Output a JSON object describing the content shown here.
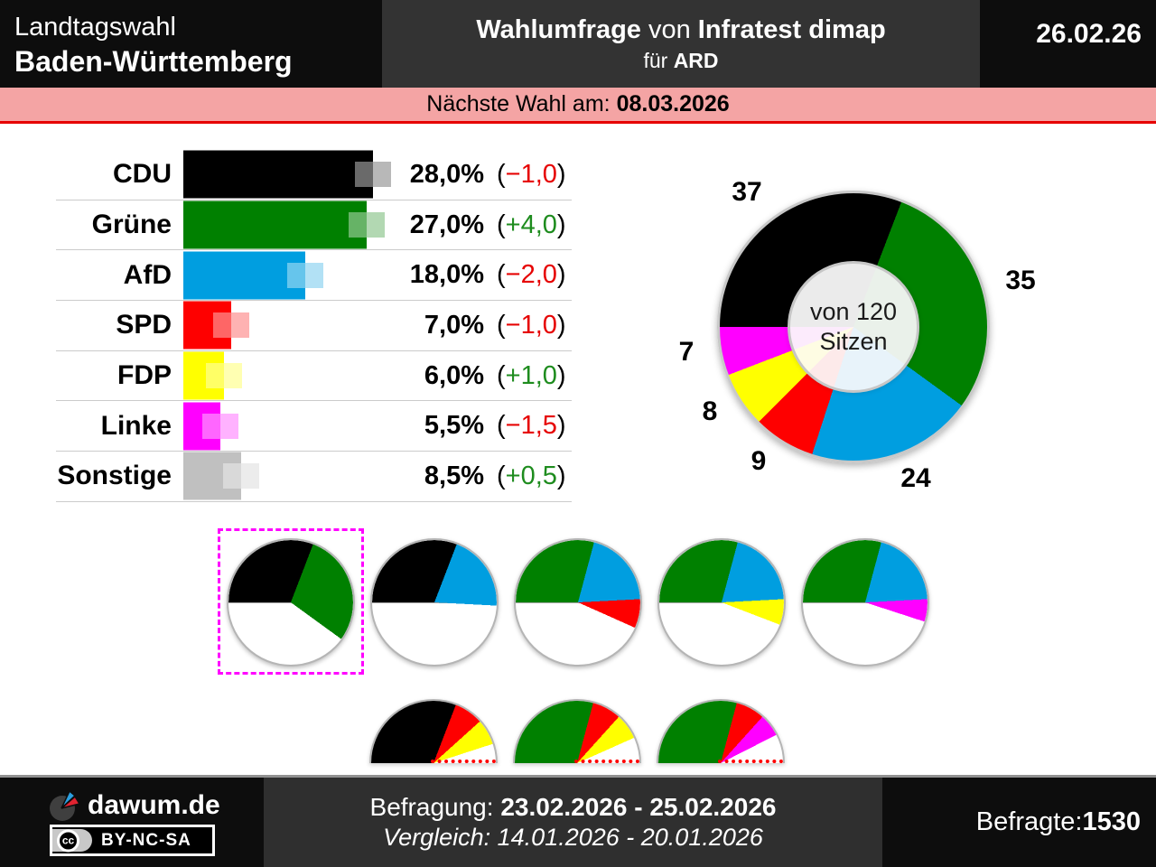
{
  "header": {
    "title_line1": "Landtagswahl",
    "title_line2": "Baden-Württemberg",
    "center_bold1": "Wahlumfrage",
    "center_mid": " von ",
    "center_bold2": "Infratest dimap",
    "center_sub_regular": "für ",
    "center_sub_bold": "ARD",
    "date": "26.02.26"
  },
  "banner": {
    "label": "Nächste Wahl am: ",
    "date": "08.03.2026"
  },
  "colors": {
    "positive": "#1e8c1e",
    "negative": "#e60000",
    "selection": "#ff00ff",
    "banner_bg": "#f4a4a4",
    "banner_border": "#e60000"
  },
  "poll": {
    "format": {
      "open": "(",
      "close": ")"
    },
    "parties": [
      {
        "name": "CDU",
        "value": 28.0,
        "value_label": "28,0%",
        "change_label": "−1,0",
        "trend": "negative",
        "color": "#000000",
        "light1": "#6a6a6a",
        "light2": "#b8b8b8"
      },
      {
        "name": "Grüne",
        "value": 27.0,
        "value_label": "27,0%",
        "change_label": "+4,0",
        "trend": "positive",
        "color": "#008000",
        "light1": "#66b366",
        "light2": "#b2d8b2"
      },
      {
        "name": "AfD",
        "value": 18.0,
        "value_label": "18,0%",
        "change_label": "−2,0",
        "trend": "negative",
        "color": "#009ee0",
        "light1": "#66c5ec",
        "light2": "#b2e1f5"
      },
      {
        "name": "SPD",
        "value": 7.0,
        "value_label": "7,0%",
        "change_label": "−1,0",
        "trend": "negative",
        "color": "#fe0000",
        "light1": "#fe6666",
        "light2": "#feb2b2"
      },
      {
        "name": "FDP",
        "value": 6.0,
        "value_label": "6,0%",
        "change_label": "+1,0",
        "trend": "positive",
        "color": "#ffff00",
        "light1": "#ffff66",
        "light2": "#ffffb2"
      },
      {
        "name": "Linke",
        "value": 5.5,
        "value_label": "5,5%",
        "change_label": "−1,5",
        "trend": "negative",
        "color": "#ff00ff",
        "light1": "#ff66ff",
        "light2": "#ffb2ff"
      },
      {
        "name": "Sonstige",
        "value": 8.5,
        "value_label": "8,5%",
        "change_label": "+0,5",
        "trend": "positive",
        "color": "#c0c0c0",
        "light1": "#d9d9d9",
        "light2": "#ececec"
      }
    ]
  },
  "seats": {
    "total": 120,
    "center_line1": "von 120",
    "center_line2": "Sitzen",
    "segments": [
      {
        "party": "CDU",
        "seats": 37,
        "color": "#000000",
        "tint": "#ebebeb"
      },
      {
        "party": "Grüne",
        "seats": 35,
        "color": "#008000",
        "tint": "#eaf1ea"
      },
      {
        "party": "AfD",
        "seats": 24,
        "color": "#009ee0",
        "tint": "#e8f3fa"
      },
      {
        "party": "SPD",
        "seats": 9,
        "color": "#fe0000",
        "tint": "#fdeaea"
      },
      {
        "party": "FDP",
        "seats": 8,
        "color": "#ffff00",
        "tint": "#fefce3"
      },
      {
        "party": "Linke",
        "seats": 7,
        "color": "#ff00ff",
        "tint": "#fcebfc"
      }
    ]
  },
  "coalitions": {
    "majority_pies": [
      {
        "selected": true,
        "parts": [
          {
            "party": "CDU",
            "seats": 37,
            "color": "#000000"
          },
          {
            "party": "Grüne",
            "seats": 35,
            "color": "#008000"
          }
        ]
      },
      {
        "selected": false,
        "parts": [
          {
            "party": "CDU",
            "seats": 37,
            "color": "#000000"
          },
          {
            "party": "AfD",
            "seats": 24,
            "color": "#009ee0"
          }
        ]
      },
      {
        "selected": false,
        "parts": [
          {
            "party": "Grüne",
            "seats": 35,
            "color": "#008000"
          },
          {
            "party": "AfD",
            "seats": 24,
            "color": "#009ee0"
          },
          {
            "party": "SPD",
            "seats": 9,
            "color": "#fe0000"
          }
        ]
      },
      {
        "selected": false,
        "parts": [
          {
            "party": "Grüne",
            "seats": 35,
            "color": "#008000"
          },
          {
            "party": "AfD",
            "seats": 24,
            "color": "#009ee0"
          },
          {
            "party": "FDP",
            "seats": 8,
            "color": "#ffff00"
          }
        ]
      },
      {
        "selected": false,
        "parts": [
          {
            "party": "Grüne",
            "seats": 35,
            "color": "#008000"
          },
          {
            "party": "AfD",
            "seats": 24,
            "color": "#009ee0"
          },
          {
            "party": "Linke",
            "seats": 7,
            "color": "#ff00ff"
          }
        ]
      }
    ],
    "minority_half_pies": [
      {
        "parts": [
          {
            "party": "CDU",
            "seats": 37,
            "color": "#000000"
          },
          {
            "party": "SPD",
            "seats": 9,
            "color": "#fe0000"
          },
          {
            "party": "FDP",
            "seats": 8,
            "color": "#ffff00"
          }
        ]
      },
      {
        "parts": [
          {
            "party": "Grüne",
            "seats": 35,
            "color": "#008000"
          },
          {
            "party": "SPD",
            "seats": 9,
            "color": "#fe0000"
          },
          {
            "party": "FDP",
            "seats": 8,
            "color": "#ffff00"
          }
        ]
      },
      {
        "parts": [
          {
            "party": "Grüne",
            "seats": 35,
            "color": "#008000"
          },
          {
            "party": "SPD",
            "seats": 9,
            "color": "#fe0000"
          },
          {
            "party": "Linke",
            "seats": 7,
            "color": "#ff00ff"
          }
        ]
      }
    ]
  },
  "footer": {
    "brand": "dawum.de",
    "cc": "cc",
    "license": "BY-NC-SA",
    "survey_label": "Befragung: ",
    "survey_dates": "23.02.2026 - 25.02.2026",
    "compare_line": "Vergleich: 14.01.2026 - 20.01.2026",
    "respondents_label": "Befragte: ",
    "respondents_value": "1530"
  },
  "chart_data": [
    {
      "type": "bar",
      "title": "Wahlumfrage von Infratest dimap für ARD",
      "categories": [
        "CDU",
        "Grüne",
        "AfD",
        "SPD",
        "FDP",
        "Linke",
        "Sonstige"
      ],
      "values": [
        28.0,
        27.0,
        18.0,
        7.0,
        6.0,
        5.5,
        8.5
      ],
      "changes": [
        -1.0,
        4.0,
        -2.0,
        -1.0,
        1.0,
        -1.5,
        0.5
      ],
      "unit": "%",
      "xlim": [
        0,
        30
      ],
      "legend_position": "none",
      "grid": false
    },
    {
      "type": "pie",
      "subtype": "donut",
      "title": "von 120 Sitzen",
      "labels": [
        "CDU",
        "Grüne",
        "AfD",
        "SPD",
        "FDP",
        "Linke"
      ],
      "values": [
        37,
        35,
        24,
        9,
        8,
        7
      ],
      "total": 120,
      "start": "left-horizontal",
      "direction": "clockwise"
    },
    {
      "type": "pie",
      "subtype": "coalition-majority",
      "pies": [
        {
          "parties": [
            "CDU",
            "Grüne"
          ],
          "seats": [
            37,
            35
          ],
          "selected": true
        },
        {
          "parties": [
            "CDU",
            "AfD"
          ],
          "seats": [
            37,
            24
          ],
          "selected": false
        },
        {
          "parties": [
            "Grüne",
            "AfD",
            "SPD"
          ],
          "seats": [
            35,
            24,
            9
          ],
          "selected": false
        },
        {
          "parties": [
            "Grüne",
            "AfD",
            "FDP"
          ],
          "seats": [
            35,
            24,
            8
          ],
          "selected": false
        },
        {
          "parties": [
            "Grüne",
            "AfD",
            "Linke"
          ],
          "seats": [
            35,
            24,
            7
          ],
          "selected": false
        }
      ]
    },
    {
      "type": "pie",
      "subtype": "coalition-minority-half",
      "pies": [
        {
          "parties": [
            "CDU",
            "SPD",
            "FDP"
          ],
          "seats": [
            37,
            9,
            8
          ]
        },
        {
          "parties": [
            "Grüne",
            "SPD",
            "FDP"
          ],
          "seats": [
            35,
            9,
            8
          ]
        },
        {
          "parties": [
            "Grüne",
            "SPD",
            "Linke"
          ],
          "seats": [
            35,
            9,
            7
          ]
        }
      ]
    }
  ]
}
